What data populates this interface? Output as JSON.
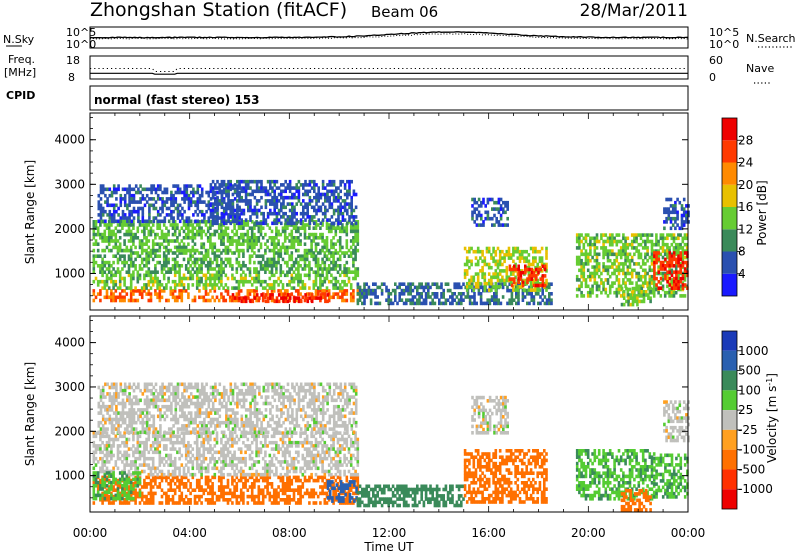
{
  "header": {
    "station": "Zhongshan Station (fitACF)",
    "beam": "Beam 06",
    "date": "28/Mar/2011",
    "mode": "normal (fast stereo) 153"
  },
  "strip1": {
    "left_label": "N.Sky",
    "right_label": "N.Search",
    "left_ticks": [
      "10^5",
      "10^0"
    ],
    "right_ticks": [
      "10^5",
      "10^0"
    ]
  },
  "strip2": {
    "left_label_1": "Freq.",
    "left_label_2": "[MHz]",
    "right_label": "Nave",
    "left_ticks": [
      "18",
      "8"
    ],
    "right_ticks": [
      "60",
      "0"
    ]
  },
  "cpid_label": "CPID",
  "x_axis": {
    "label": "Time UT",
    "tick_labels": [
      "00:00",
      "04:00",
      "08:00",
      "12:00",
      "16:00",
      "20:00",
      "00:00"
    ]
  },
  "y_axis": {
    "label": "Slant Range [km]",
    "tick_labels": [
      "1000",
      "2000",
      "3000",
      "4000"
    ]
  },
  "power_colorbar": {
    "label": "Power [dB]",
    "tick_labels": [
      "4",
      "8",
      "12",
      "16",
      "20",
      "24",
      "28"
    ],
    "colors": [
      "#1a1aff",
      "#2a50b0",
      "#3a8a5a",
      "#66cc33",
      "#e8c000",
      "#ff8a00",
      "#ff3a00",
      "#ee0000"
    ]
  },
  "velocity_colorbar": {
    "label_main": "Velocity [m s",
    "label_sup": "-1",
    "label_end": "]",
    "tick_labels": [
      "1000",
      "500",
      "100",
      "25",
      "-25",
      "-100",
      "-500",
      "-1000"
    ],
    "colors": [
      "#1a3ab8",
      "#2a60b0",
      "#3a8a5a",
      "#55cc33",
      "#c0c0bc",
      "#ffa020",
      "#ff7000",
      "#ff3000",
      "#ee0000"
    ]
  },
  "chart_data": {
    "type": "heatmap",
    "x_range_hours": [
      0,
      24
    ],
    "y_range_km": [
      180,
      4600
    ],
    "panels": [
      {
        "quantity": "power",
        "blobs": [
          {
            "t0": 0.1,
            "t1": 10.7,
            "r0": 430,
            "r1": 650,
            "value": 24
          },
          {
            "t0": 0.1,
            "t1": 10.7,
            "r0": 650,
            "r1": 1000,
            "value": 14
          },
          {
            "t0": 0.1,
            "t1": 10.7,
            "r0": 1000,
            "r1": 1500,
            "value": 12
          },
          {
            "t0": 0.1,
            "t1": 10.7,
            "r0": 1500,
            "r1": 2200,
            "value": 13
          },
          {
            "t0": 0.3,
            "t1": 6.0,
            "r0": 2200,
            "r1": 3000,
            "value": 6
          },
          {
            "t0": 4.8,
            "t1": 10.7,
            "r0": 2100,
            "r1": 3100,
            "value": 6
          },
          {
            "t0": 5.6,
            "t1": 9.5,
            "r0": 350,
            "r1": 560,
            "value": 28
          },
          {
            "t0": 10.7,
            "t1": 18.5,
            "r0": 300,
            "r1": 800,
            "value": 8
          },
          {
            "t0": 15.0,
            "t1": 18.3,
            "r0": 600,
            "r1": 1600,
            "value": 16
          },
          {
            "t0": 16.8,
            "t1": 18.3,
            "r0": 700,
            "r1": 1200,
            "value": 27
          },
          {
            "t0": 15.3,
            "t1": 16.8,
            "r0": 2100,
            "r1": 2700,
            "value": 6
          },
          {
            "t0": 19.5,
            "t1": 24.0,
            "r0": 500,
            "r1": 1900,
            "value": 14
          },
          {
            "t0": 22.6,
            "t1": 24.0,
            "r0": 700,
            "r1": 1500,
            "value": 27
          },
          {
            "t0": 21.3,
            "t1": 22.5,
            "r0": 300,
            "r1": 700,
            "value": 14
          },
          {
            "t0": 23.0,
            "t1": 24.0,
            "r0": 2000,
            "r1": 2700,
            "value": 6
          }
        ]
      },
      {
        "quantity": "velocity",
        "blobs": [
          {
            "t0": 0.1,
            "t1": 10.7,
            "r0": 400,
            "r1": 1000,
            "value": -150
          },
          {
            "t0": 0.1,
            "t1": 10.7,
            "r0": 1000,
            "r1": 2000,
            "value": 0
          },
          {
            "t0": 0.3,
            "t1": 10.7,
            "r0": 2000,
            "r1": 3100,
            "value": 0
          },
          {
            "t0": 0.1,
            "t1": 2.0,
            "r0": 500,
            "r1": 1100,
            "value": 90
          },
          {
            "t0": 9.5,
            "t1": 10.7,
            "r0": 400,
            "r1": 900,
            "value": 600
          },
          {
            "t0": 10.7,
            "t1": 15.0,
            "r0": 300,
            "r1": 800,
            "value": 400
          },
          {
            "t0": 15.0,
            "t1": 18.3,
            "r0": 400,
            "r1": 1600,
            "value": -150
          },
          {
            "t0": 15.3,
            "t1": 16.8,
            "r0": 2000,
            "r1": 2800,
            "value": 0
          },
          {
            "t0": 19.5,
            "t1": 22.6,
            "r0": 500,
            "r1": 1600,
            "value": 90
          },
          {
            "t0": 22.6,
            "t1": 24.0,
            "r0": 500,
            "r1": 1500,
            "value": 90
          },
          {
            "t0": 21.3,
            "t1": 22.5,
            "r0": 250,
            "r1": 700,
            "value": -200
          },
          {
            "t0": 23.0,
            "t1": 24.0,
            "r0": 1800,
            "r1": 2700,
            "value": 0
          }
        ]
      }
    ]
  }
}
